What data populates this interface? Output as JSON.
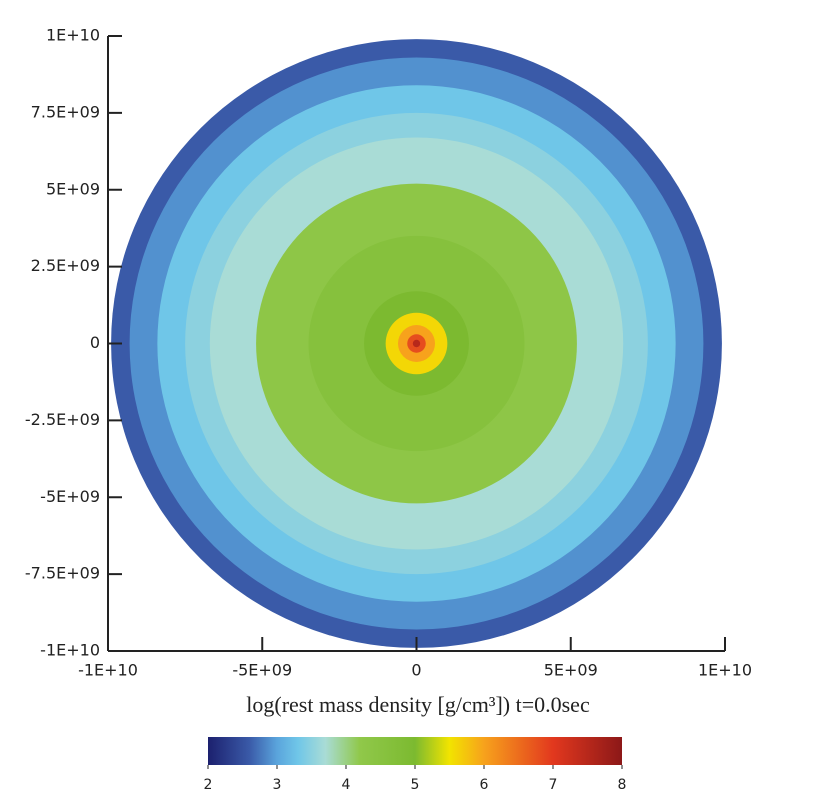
{
  "chart_data": {
    "type": "contour",
    "xlabel": "log(rest mass density [g/cm³])  t=0.0sec",
    "xlim": [
      -10000000000,
      10000000000
    ],
    "ylim": [
      -10000000000,
      10000000000
    ],
    "xticks": [
      {
        "value": -10000000000,
        "label": "-1E+10"
      },
      {
        "value": -5000000000,
        "label": "-5E+09"
      },
      0,
      {
        "value": 5000000000,
        "label": "5E+09"
      },
      {
        "value": 10000000000,
        "label": "1E+10"
      }
    ],
    "yticks": [
      {
        "value": 10000000000,
        "label": "1E+10"
      },
      {
        "value": 7500000000,
        "label": "7.5E+09"
      },
      {
        "value": 5000000000,
        "label": "5E+09"
      },
      {
        "value": 2500000000,
        "label": "2.5E+09"
      },
      0,
      {
        "value": -2500000000,
        "label": "-2.5E+09"
      },
      {
        "value": -5000000000,
        "label": "-5E+09"
      },
      {
        "value": -7500000000,
        "label": "-7.5E+09"
      },
      {
        "value": -10000000000,
        "label": "-1E+10"
      }
    ],
    "radii": [
      9900000000,
      9300000000,
      8400000000,
      7500000000,
      6700000000,
      5200000000,
      3500000000,
      1700000000,
      1000000000,
      600000000,
      300000000,
      120000000
    ],
    "values": [
      2.6,
      2.9,
      3.3,
      3.5,
      3.7,
      4.3,
      4.6,
      5.0,
      5.6,
      6.0,
      6.8,
      7.5
    ],
    "colorbar": {
      "range": [
        2,
        8
      ],
      "ticks": [
        2,
        3,
        4,
        5,
        6,
        7,
        8
      ],
      "colormap": [
        {
          "value": 2,
          "color": "#1c206e"
        },
        {
          "value": 2.6,
          "color": "#3a5aa8"
        },
        {
          "value": 3,
          "color": "#5aa4dc"
        },
        {
          "value": 3.3,
          "color": "#6fc6e8"
        },
        {
          "value": 3.7,
          "color": "#a9dcd6"
        },
        {
          "value": 4.2,
          "color": "#90c84a"
        },
        {
          "value": 5,
          "color": "#7cba30"
        },
        {
          "value": 5.5,
          "color": "#f2e400"
        },
        {
          "value": 6,
          "color": "#f7a21c"
        },
        {
          "value": 7,
          "color": "#e2381e"
        },
        {
          "value": 8,
          "color": "#8c1818"
        }
      ]
    }
  }
}
